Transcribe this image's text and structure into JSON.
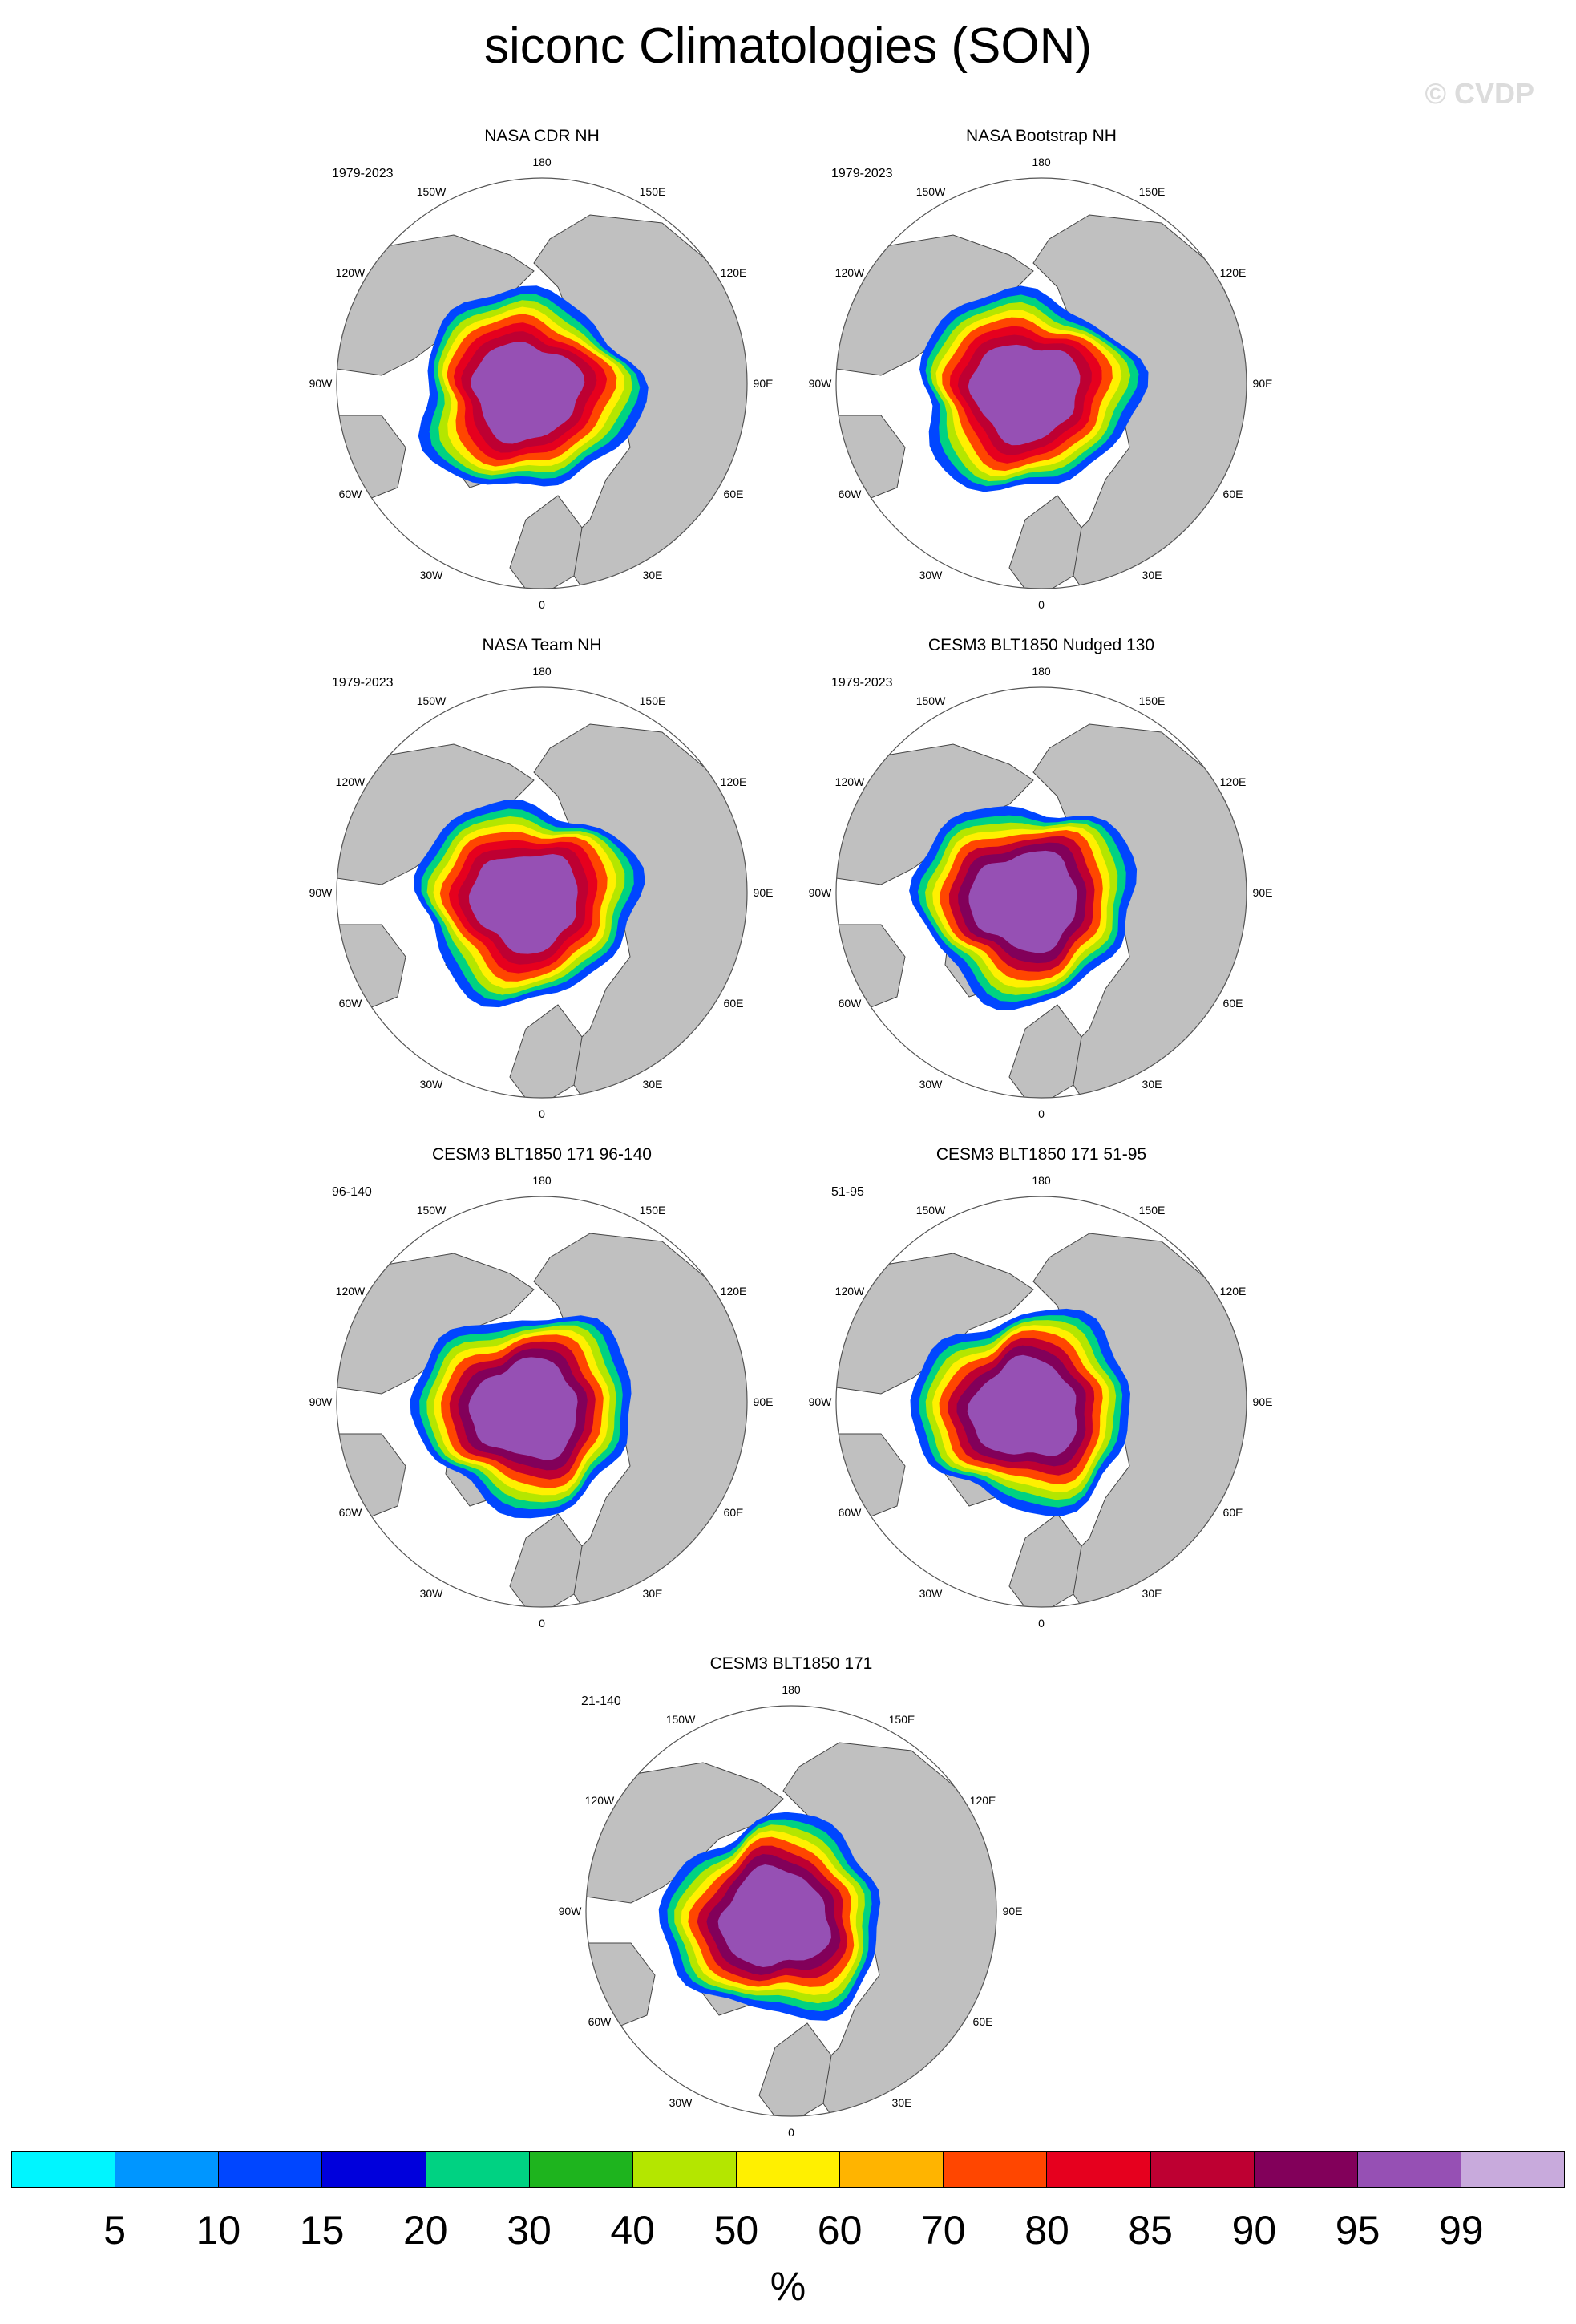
{
  "title": "siconc Climatologies (SON)",
  "watermark": "© CVDP",
  "panels": [
    {
      "title": "NASA CDR NH",
      "period": "1979-2023"
    },
    {
      "title": "NASA Bootstrap NH",
      "period": "1979-2023"
    },
    {
      "title": "NASA Team NH",
      "period": "1979-2023"
    },
    {
      "title": "CESM3 BLT1850 Nudged 130",
      "period": "1979-2023"
    },
    {
      "title": "CESM3 BLT1850 171 96-140",
      "period": "96-140"
    },
    {
      "title": "CESM3 BLT1850 171 51-95",
      "period": "51-95"
    },
    {
      "title": "CESM3 BLT1850 171",
      "period": "21-140"
    }
  ],
  "longitude_labels": [
    "180",
    "150E",
    "120E",
    "90E",
    "60E",
    "30E",
    "0",
    "30W",
    "60W",
    "90W",
    "120W",
    "150W"
  ],
  "colorbar": {
    "labels": [
      "5",
      "10",
      "15",
      "20",
      "30",
      "40",
      "50",
      "60",
      "70",
      "80",
      "85",
      "90",
      "95",
      "99"
    ],
    "colors": [
      "#00f5ff",
      "#0096ff",
      "#0046ff",
      "#0000dc",
      "#00d282",
      "#1eb41e",
      "#b4e600",
      "#fff000",
      "#ffb400",
      "#ff4600",
      "#e6001e",
      "#be0032",
      "#82005a",
      "#9650b4",
      "#c8aadc"
    ],
    "units": "%"
  }
}
